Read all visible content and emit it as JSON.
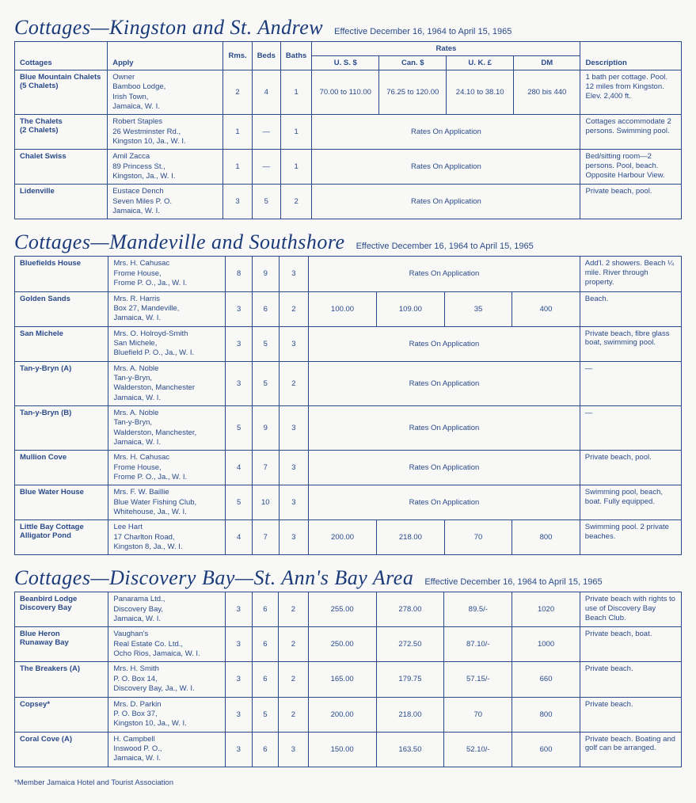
{
  "footnote": "*Member Jamaica Hotel and Tourist Association",
  "headers": {
    "cottages": "Cottages",
    "apply": "Apply",
    "rms": "Rms.",
    "beds": "Beds",
    "baths": "Baths",
    "rates": "Rates",
    "us": "U. S. $",
    "can": "Can. $",
    "uk": "U. K. £",
    "dm": "DM",
    "desc": "Description"
  },
  "sections": [
    {
      "title": "Cottages—Kingston and St. Andrew",
      "effective": "Effective December 16, 1964 to April 15, 1965",
      "showHeader": true,
      "rows": [
        {
          "name": "Blue Mountain Chalets\n(5 Chalets)",
          "apply": "Owner\nBamboo Lodge,\nIrish Town,\nJamaica, W. I.",
          "rms": "2",
          "beds": "4",
          "baths": "1",
          "us": "70.00 to 110.00",
          "can": "76.25 to 120.00",
          "uk": "24.10 to 38.10",
          "dm": "280 bis 440",
          "desc": "1 bath per cottage. Pool. 12 miles from Kingston. Elev. 2,400 ft."
        },
        {
          "name": "The Chalets\n(2 Chalets)",
          "apply": "Robert Staples\n26 Westminster Rd.,\nKingston 10, Ja., W. I.",
          "rms": "1",
          "beds": "—",
          "baths": "1",
          "ratesApp": "Rates On Application",
          "desc": "Cottages accommodate 2 persons. Swimming pool."
        },
        {
          "name": "Chalet Swiss",
          "apply": "Amil Zacca\n89 Princess St.,\nKingston, Ja., W. I.",
          "rms": "1",
          "beds": "—",
          "baths": "1",
          "ratesApp": "Rates On Application",
          "desc": "Bed/sitting room—2 persons. Pool, beach. Opposite Harbour View."
        },
        {
          "name": "Lidenville",
          "apply": "Eustace Dench\nSeven Miles P. O.\nJamaica, W. I.",
          "rms": "3",
          "beds": "5",
          "baths": "2",
          "ratesApp": "Rates On Application",
          "desc": "Private beach, pool."
        }
      ]
    },
    {
      "title": "Cottages—Mandeville and Southshore",
      "effective": "Effective December 16, 1964 to April 15, 1965",
      "showHeader": false,
      "rows": [
        {
          "name": "Bluefields House",
          "apply": "Mrs. H. Cahusac\nFrome House,\nFrome P. O., Ja., W. I.",
          "rms": "8",
          "beds": "9",
          "baths": "3",
          "ratesApp": "Rates On Application",
          "desc": "Add'l. 2 showers. Beach ¼ mile. River through property."
        },
        {
          "name": "Golden Sands",
          "apply": "Mrs. R. Harris\nBox 27, Mandeville,\nJamaica, W. I.",
          "rms": "3",
          "beds": "6",
          "baths": "2",
          "us": "100.00",
          "can": "109.00",
          "uk": "35",
          "dm": "400",
          "desc": "Beach."
        },
        {
          "name": "San Michele",
          "apply": "Mrs. O. Holroyd-Smith\nSan Michele,\nBluefield P. O., Ja., W. I.",
          "rms": "3",
          "beds": "5",
          "baths": "3",
          "ratesApp": "Rates On Application",
          "desc": "Private beach, fibre glass boat, swimming pool."
        },
        {
          "name": "Tan-y-Bryn (A)",
          "apply": "Mrs. A. Noble\nTan-y-Bryn,\nWalderston, Manchester\nJamaica, W. I.",
          "rms": "3",
          "beds": "5",
          "baths": "2",
          "ratesApp": "Rates On Application",
          "desc": "—"
        },
        {
          "name": "Tan-y-Bryn (B)",
          "apply": "Mrs. A. Noble\nTan-y-Bryn,\nWalderston, Manchester,\nJamaica, W. I.",
          "rms": "5",
          "beds": "9",
          "baths": "3",
          "ratesApp": "Rates On Application",
          "desc": "—"
        },
        {
          "name": "Mullion Cove",
          "apply": "Mrs. H. Cahusac\nFrome House,\nFrome P. O., Ja., W. I.",
          "rms": "4",
          "beds": "7",
          "baths": "3",
          "ratesApp": "Rates On Application",
          "desc": "Private beach, pool."
        },
        {
          "name": "Blue Water House",
          "apply": "Mrs. F. W. Baillie\nBlue Water Fishing Club,\nWhitehouse, Ja., W. I.",
          "rms": "5",
          "beds": "10",
          "baths": "3",
          "ratesApp": "Rates On Application",
          "desc": "Swimming pool, beach, boat. Fully equipped."
        },
        {
          "name": "Little Bay Cottage\nAlligator Pond",
          "apply": "Lee Hart\n17 Charlton Road,\nKingston 8, Ja., W. I.",
          "rms": "4",
          "beds": "7",
          "baths": "3",
          "us": "200.00",
          "can": "218.00",
          "uk": "70",
          "dm": "800",
          "desc": "Swimming pool. 2 private beaches."
        }
      ]
    },
    {
      "title": "Cottages—Discovery Bay—St. Ann's Bay Area",
      "effective": "Effective December 16, 1964 to April 15, 1965",
      "showHeader": false,
      "rows": [
        {
          "name": "Beanbird Lodge\nDiscovery Bay",
          "apply": "Panarama Ltd.,\nDiscovery Bay,\nJamaica, W. I.",
          "rms": "3",
          "beds": "6",
          "baths": "2",
          "us": "255.00",
          "can": "278.00",
          "uk": "89.5/-",
          "dm": "1020",
          "desc": "Private beach with rights to use of Discovery Bay Beach Club."
        },
        {
          "name": "Blue Heron\nRunaway Bay",
          "apply": "Vaughan's\nReal Estate Co. Ltd.,\nOcho Rios, Jamaica, W. I.",
          "rms": "3",
          "beds": "6",
          "baths": "2",
          "us": "250.00",
          "can": "272.50",
          "uk": "87.10/-",
          "dm": "1000",
          "desc": "Private beach, boat."
        },
        {
          "name": "The Breakers (A)",
          "apply": "Mrs. H. Smith\nP. O. Box 14,\nDiscovery Bay, Ja., W. I.",
          "rms": "3",
          "beds": "6",
          "baths": "2",
          "us": "165.00",
          "can": "179.75",
          "uk": "57.15/-",
          "dm": "660",
          "desc": "Private beach."
        },
        {
          "name": "Copsey*",
          "apply": "Mrs. D. Parkin\nP. O. Box 37,\nKingston 10, Ja., W. I.",
          "rms": "3",
          "beds": "5",
          "baths": "2",
          "us": "200.00",
          "can": "218.00",
          "uk": "70",
          "dm": "800",
          "desc": "Private beach."
        },
        {
          "name": "Coral Cove (A)",
          "apply": "H. Campbell\nInswood P. O.,\nJamaica, W. I.",
          "rms": "3",
          "beds": "6",
          "baths": "3",
          "us": "150.00",
          "can": "163.50",
          "uk": "52.10/-",
          "dm": "600",
          "desc": "Private beach. Boating and golf can be arranged."
        }
      ]
    }
  ]
}
